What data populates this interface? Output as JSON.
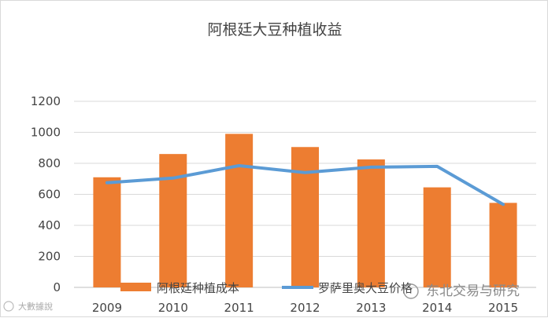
{
  "chart_data": {
    "type": "bar+line",
    "title": "阿根廷大豆种植收益",
    "categories": [
      "2009",
      "2010",
      "2011",
      "2012",
      "2013",
      "2014",
      "2015"
    ],
    "series": [
      {
        "name": "阿根廷种植成本",
        "type": "bar",
        "color": "#ED7D31",
        "values": [
          710,
          860,
          990,
          905,
          825,
          645,
          545
        ]
      },
      {
        "name": "罗萨里奥大豆价格",
        "type": "line",
        "color": "#5B9BD5",
        "values": [
          675,
          705,
          785,
          740,
          775,
          780,
          535
        ]
      }
    ],
    "ylim": [
      0,
      1200
    ],
    "yticks": [
      0,
      200,
      400,
      600,
      800,
      1000,
      1200
    ],
    "grid": true,
    "legend": "bottom"
  },
  "watermarks": {
    "left": "大數據說",
    "right": "东北交易与研究"
  }
}
